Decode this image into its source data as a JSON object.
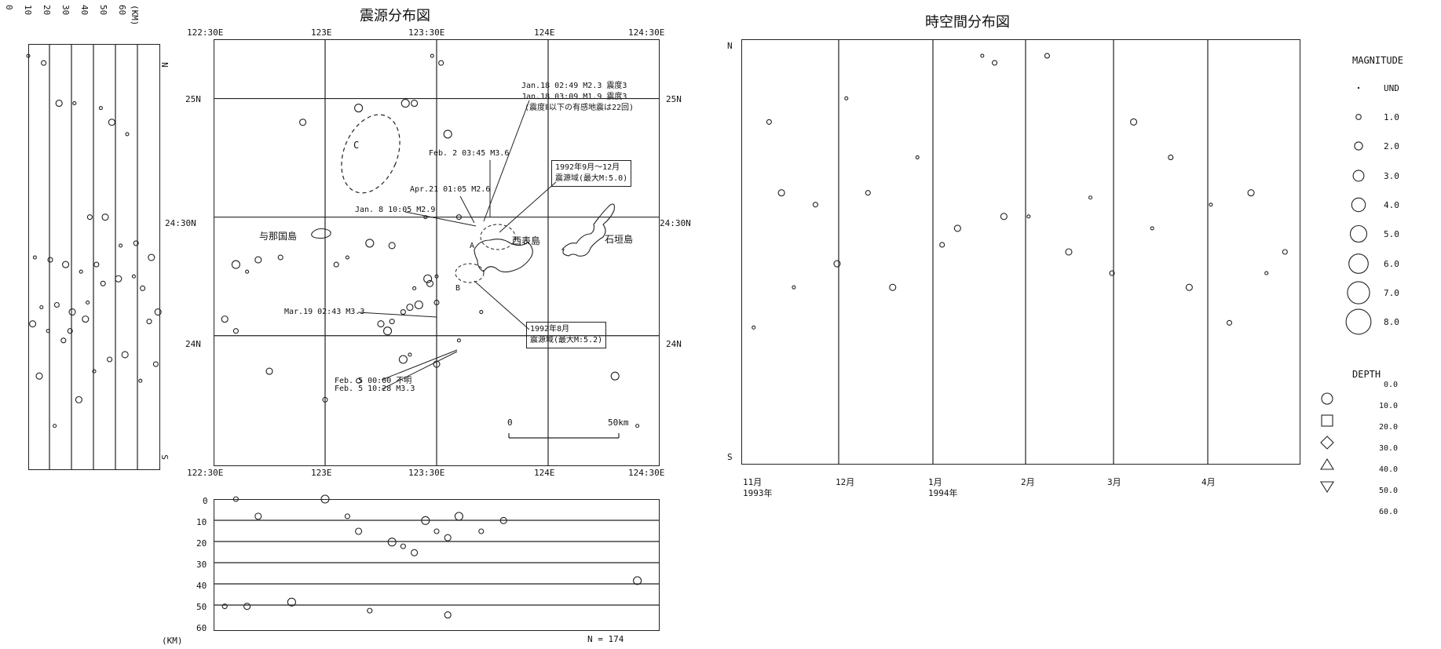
{
  "map": {
    "title": "震源分布図",
    "lon_ticks": [
      "122:30E",
      "123E",
      "123:30E",
      "124E",
      "124:30E"
    ],
    "lat_ticks": [
      "25N",
      "24:30N",
      "24N"
    ],
    "places": {
      "yonaguni": "与那国島",
      "iriomote": "西表島",
      "ishigaki": "石垣島"
    },
    "region_labels": {
      "a": "A",
      "b": "B",
      "c": "C"
    },
    "annotations": {
      "jan18": [
        "Jan.18 02:49 M2.3 震度3",
        "Jan.18 03:09 M1.9 震度3",
        "(震度Ⅱ以下の有感地震は22回)"
      ],
      "feb2": "Feb. 2 03:45 M3.6",
      "apr21": "Apr.21 01:05 M2.6",
      "jan8": "Jan. 8 10:05 M2.9",
      "mar19": "Mar.19 02:43 M3.3",
      "feb5": [
        "Feb. 5 00:00 不明",
        "Feb. 5 10:28 M3.3"
      ],
      "box1992sep": [
        "1992年9月～12月",
        "震源域(最大M:5.0)"
      ],
      "box1992aug": [
        "1992年8月",
        "震源域(最大M:5.2)"
      ]
    },
    "scale": {
      "zero": "0",
      "km": "50km"
    },
    "ns_north": "N",
    "ns_south": "S"
  },
  "depth_ew": {
    "ticks": [
      "0",
      "10",
      "20",
      "30",
      "40",
      "50",
      "60"
    ],
    "unit": "(KM)",
    "count": "N = 174"
  },
  "depth_ns": {
    "ticks": [
      "0",
      "10",
      "20",
      "30",
      "40",
      "50",
      "60"
    ],
    "unit": "(KM)"
  },
  "timeline": {
    "title": "時空間分布図",
    "north": "N",
    "south": "S",
    "months": [
      "11月",
      "12月",
      "1月",
      "2月",
      "3月",
      "4月"
    ],
    "years": {
      "y1993": "1993年",
      "y1994": "1994年"
    }
  },
  "legend": {
    "magnitude_title": "MAGNITUDE",
    "magnitudes": [
      "UND",
      "1.0",
      "2.0",
      "3.0",
      "4.0",
      "5.0",
      "6.0",
      "7.0",
      "8.0"
    ],
    "depth_title": "DEPTH",
    "depths": [
      "0.0",
      "10.0",
      "20.0",
      "30.0",
      "40.0",
      "50.0",
      "60.0"
    ]
  },
  "chart_data": [
    {
      "type": "scatter",
      "title": "震源分布図",
      "xlabel": "",
      "ylabel": "",
      "xlim": [
        122.5,
        124.5
      ],
      "ylim": [
        23.45,
        25.25
      ],
      "grid": true,
      "x": [
        123.48,
        123.52,
        123.4,
        123.36,
        123.45,
        123.6,
        123.3,
        123.2,
        123.1,
        122.8,
        122.7,
        122.6,
        122.65,
        123.05,
        122.9,
        123.55,
        123.4,
        123.35,
        123.38,
        123.42,
        123.7,
        123.5,
        123.47,
        123.46,
        123.5,
        123.3,
        123.25,
        123.28,
        123.6,
        123.0,
        122.75,
        123.35,
        123.38,
        123.15,
        123.5,
        124.3,
        124.4,
        122.6,
        122.55,
        123.15
      ],
      "y": [
        25.18,
        25.15,
        24.98,
        24.98,
        24.5,
        24.5,
        24.38,
        24.39,
        24.33,
        24.33,
        24.32,
        24.3,
        24.27,
        24.3,
        24.9,
        24.85,
        24.2,
        24.1,
        24.12,
        24.13,
        24.1,
        24.14,
        24.22,
        24.24,
        24.25,
        24.06,
        24.05,
        24.02,
        23.98,
        23.73,
        23.85,
        23.9,
        23.92,
        23.81,
        23.88,
        23.83,
        23.62,
        24.02,
        24.07,
        24.96
      ]
    },
    {
      "type": "scatter",
      "title": "時空間分布図",
      "xlabel": "",
      "ylabel": "",
      "x": [
        "1993-11-05",
        "1993-11-10",
        "1993-11-14",
        "1993-11-18",
        "1993-11-25",
        "1993-12-02",
        "1993-12-05",
        "1993-12-12",
        "1993-12-20",
        "1993-12-28",
        "1994-01-05",
        "1994-01-10",
        "1994-01-18",
        "1994-01-22",
        "1994-01-25",
        "1994-02-02",
        "1994-02-08",
        "1994-02-15",
        "1994-02-22",
        "1994-03-01",
        "1994-03-08",
        "1994-03-14",
        "1994-03-20",
        "1994-03-26",
        "1994-04-02",
        "1994-04-08",
        "1994-04-15",
        "1994-04-20",
        "1994-04-26"
      ],
      "y": [
        24.03,
        24.9,
        24.6,
        24.2,
        24.55,
        24.3,
        25.0,
        24.6,
        24.2,
        24.75,
        24.38,
        24.45,
        25.18,
        25.15,
        24.5,
        24.5,
        25.18,
        24.35,
        24.58,
        24.26,
        24.9,
        24.45,
        24.75,
        24.2,
        24.55,
        24.05,
        24.6,
        24.26,
        24.35
      ]
    },
    {
      "type": "scatter",
      "title": "",
      "xlabel": "",
      "ylabel": "(KM)",
      "xlim": [
        122.5,
        124.5
      ],
      "ylim": [
        60,
        0
      ],
      "x": [
        122.6,
        122.7,
        123.0,
        123.1,
        123.15,
        123.3,
        123.35,
        123.4,
        123.45,
        123.5,
        123.55,
        123.6,
        123.7,
        123.8,
        124.4,
        122.55,
        122.65,
        122.85,
        123.2,
        123.55
      ],
      "y": [
        0,
        8,
        0,
        8,
        15,
        20,
        22,
        25,
        10,
        15,
        18,
        8,
        15,
        10,
        38,
        50,
        50,
        48,
        52,
        54
      ]
    }
  ]
}
